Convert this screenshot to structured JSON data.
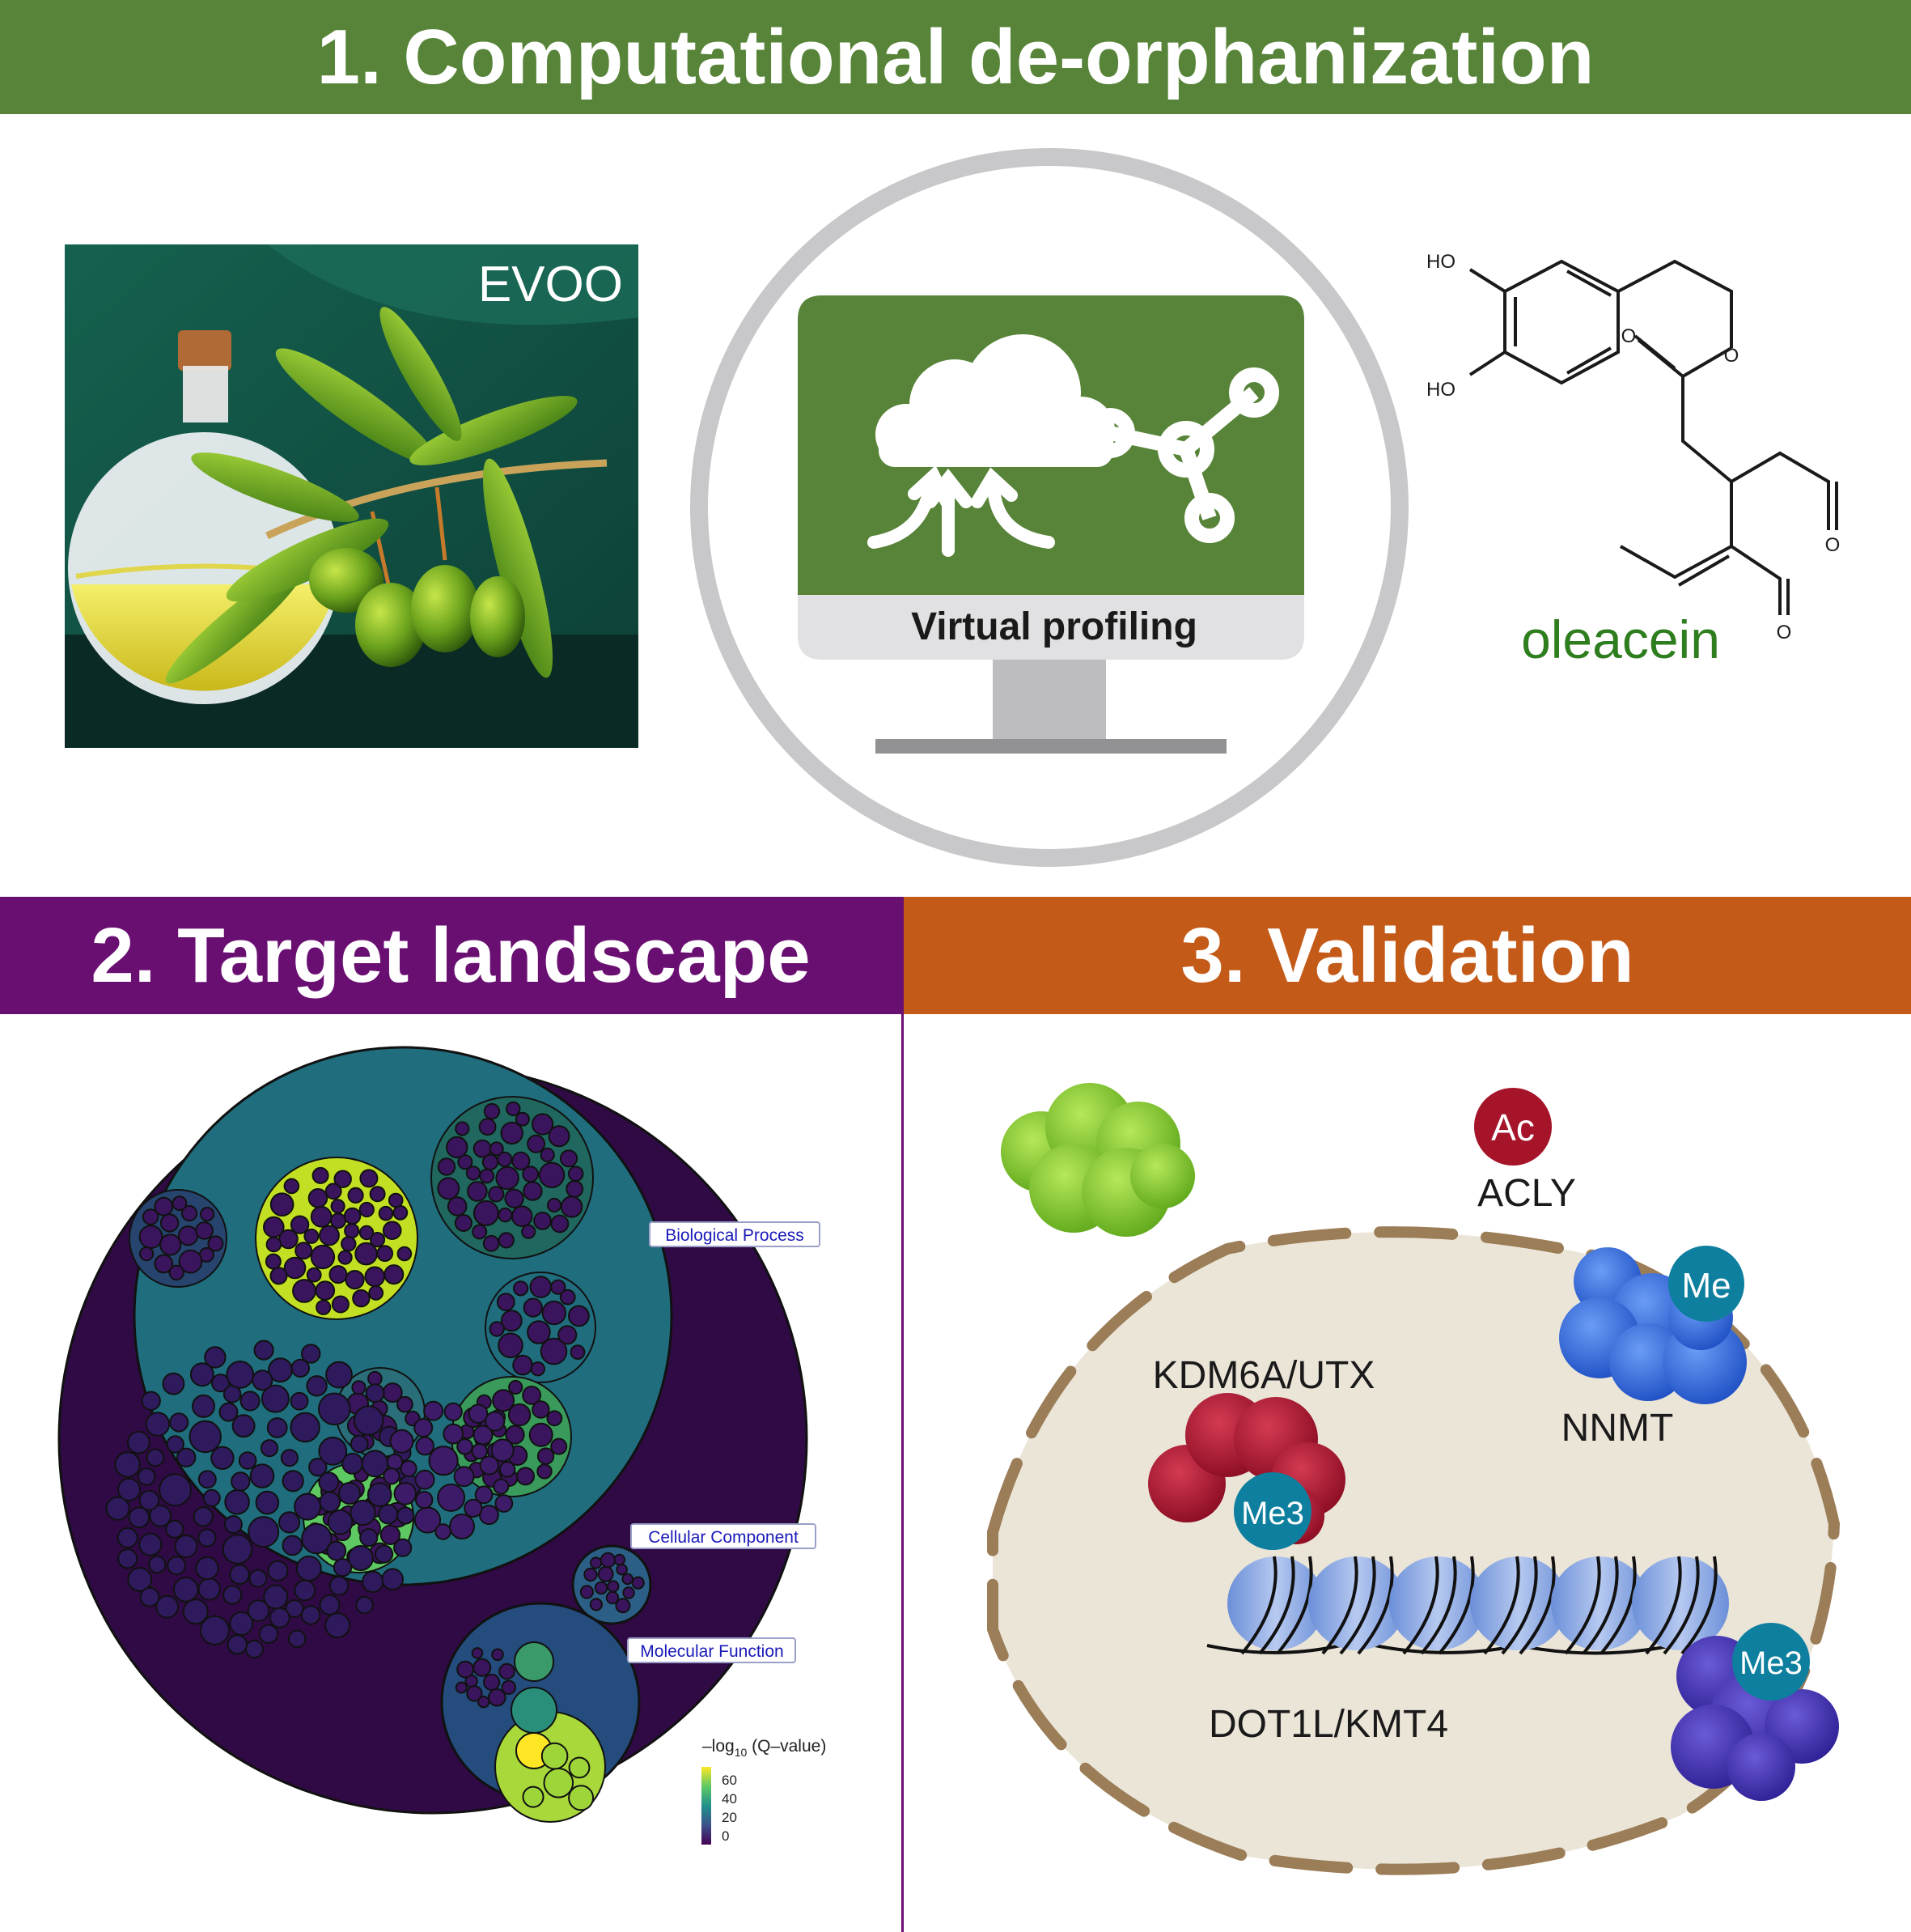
{
  "panel1": {
    "title": "1. Computational de-orphanization",
    "evoo_label": "EVOO",
    "screen_label": "Virtual profiling",
    "molecule": {
      "name": "oleacein",
      "ho_top": "HO",
      "ho_bottom": "HO",
      "oxygen": "O"
    }
  },
  "panel2": {
    "title": "2. Target landscape",
    "labels": {
      "bp": "Biological Process",
      "cc": "Cellular Component",
      "mf": "Molecular Function"
    },
    "legend": {
      "title_prefix": "–log",
      "title_sub": "10",
      "title_suffix": " (Q–value)",
      "ticks": [
        "60",
        "40",
        "20",
        "0"
      ]
    }
  },
  "panel3": {
    "title": "3. Validation",
    "proteins": {
      "acly": "ACLY",
      "acly_mark": "Ac",
      "nnmt": "NNMT",
      "nnmt_mark": "Me",
      "kdm": "KDM6A/UTX",
      "kdm_mark": "Me3",
      "dot": "DOT1L/KMT4",
      "dot_mark": "Me3"
    }
  },
  "colors": {
    "green_banner": "#578438",
    "purple_banner": "#6a0f72",
    "orange_banner": "#c45a17",
    "oleacein_text": "#2e7d1e",
    "nucleus": "#ebe5d8",
    "membrane": "#9b7d57"
  }
}
